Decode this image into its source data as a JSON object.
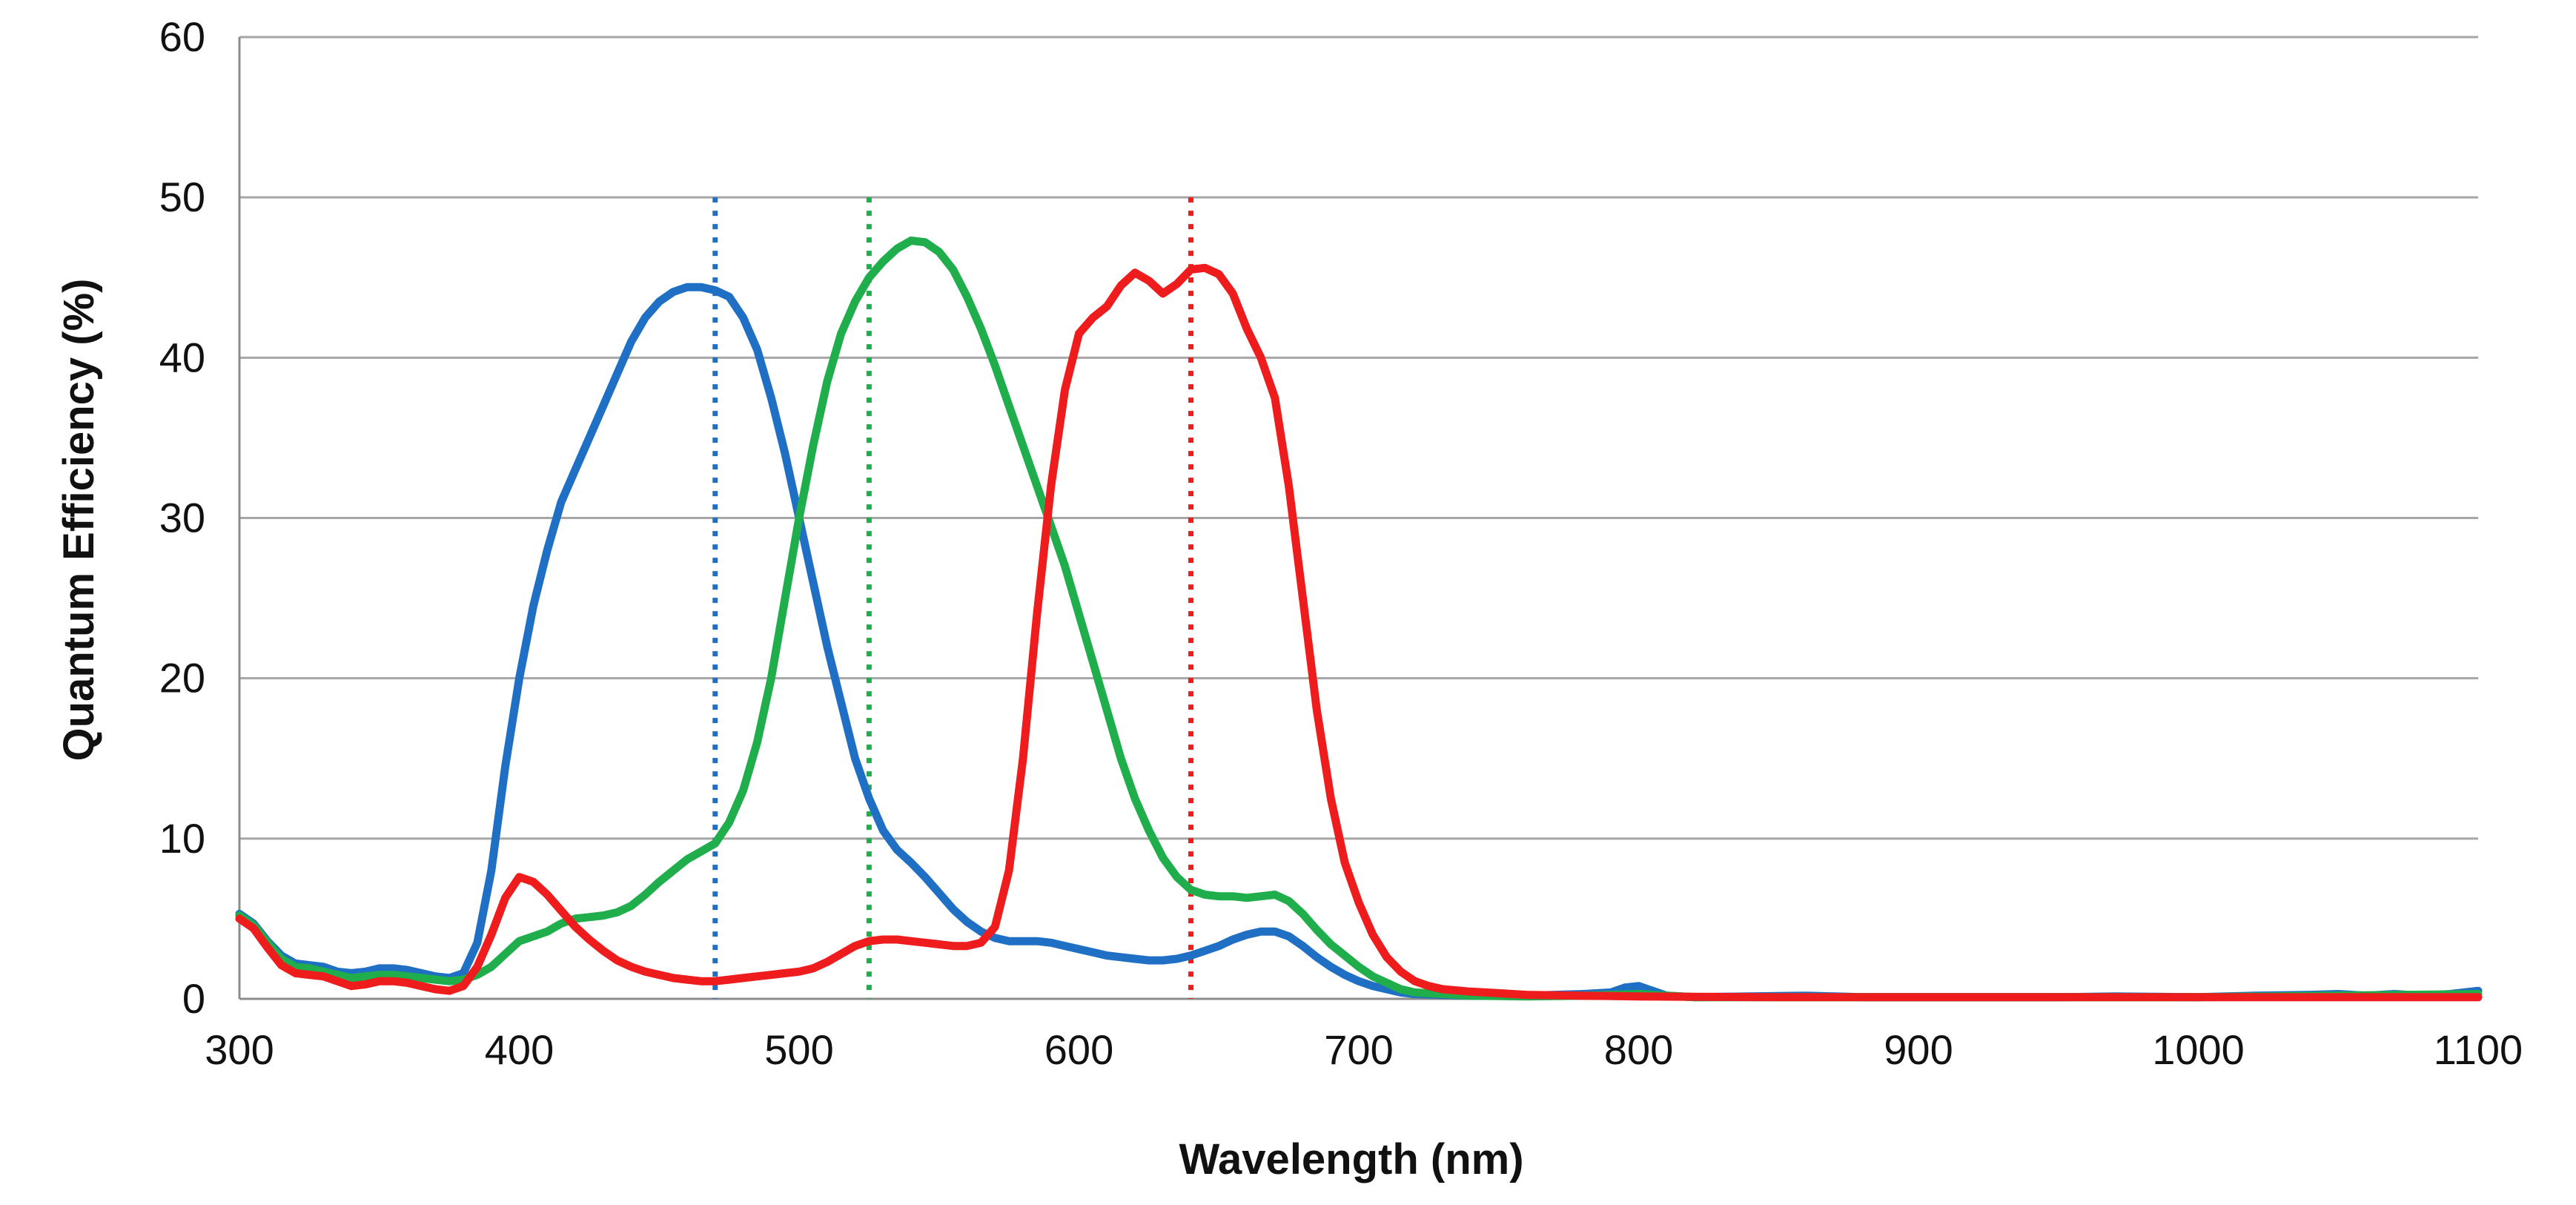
{
  "chart_data": {
    "type": "line",
    "title": "",
    "xlabel": "Wavelength (nm)",
    "ylabel": "Quantum Efficiency (%)",
    "xlim": [
      300,
      1100
    ],
    "ylim": [
      0,
      60
    ],
    "xticks": [
      300,
      400,
      500,
      600,
      700,
      800,
      900,
      1000,
      1100
    ],
    "yticks": [
      0,
      10,
      20,
      30,
      40,
      50,
      60
    ],
    "grid": true,
    "legend": "none",
    "series": [
      {
        "name": "blue",
        "color": "#1f6fc5",
        "points": [
          [
            300,
            5.3
          ],
          [
            305,
            4.7
          ],
          [
            310,
            3.6
          ],
          [
            315,
            2.7
          ],
          [
            320,
            2.2
          ],
          [
            325,
            2.1
          ],
          [
            330,
            2.0
          ],
          [
            335,
            1.7
          ],
          [
            340,
            1.6
          ],
          [
            345,
            1.7
          ],
          [
            350,
            1.9
          ],
          [
            355,
            1.9
          ],
          [
            360,
            1.8
          ],
          [
            365,
            1.6
          ],
          [
            370,
            1.4
          ],
          [
            375,
            1.3
          ],
          [
            380,
            1.6
          ],
          [
            385,
            3.5
          ],
          [
            390,
            8.0
          ],
          [
            395,
            14.5
          ],
          [
            400,
            20.0
          ],
          [
            405,
            24.5
          ],
          [
            410,
            28.0
          ],
          [
            415,
            31.0
          ],
          [
            420,
            33.0
          ],
          [
            425,
            35.0
          ],
          [
            430,
            37.0
          ],
          [
            435,
            39.0
          ],
          [
            440,
            41.0
          ],
          [
            445,
            42.5
          ],
          [
            450,
            43.5
          ],
          [
            455,
            44.1
          ],
          [
            460,
            44.4
          ],
          [
            465,
            44.4
          ],
          [
            470,
            44.2
          ],
          [
            475,
            43.8
          ],
          [
            480,
            42.5
          ],
          [
            485,
            40.5
          ],
          [
            490,
            37.5
          ],
          [
            495,
            34.0
          ],
          [
            500,
            30.0
          ],
          [
            505,
            26.0
          ],
          [
            510,
            22.0
          ],
          [
            515,
            18.5
          ],
          [
            520,
            15.0
          ],
          [
            525,
            12.5
          ],
          [
            530,
            10.5
          ],
          [
            535,
            9.3
          ],
          [
            540,
            8.5
          ],
          [
            545,
            7.6
          ],
          [
            550,
            6.6
          ],
          [
            555,
            5.6
          ],
          [
            560,
            4.8
          ],
          [
            565,
            4.2
          ],
          [
            570,
            3.8
          ],
          [
            575,
            3.6
          ],
          [
            580,
            3.6
          ],
          [
            585,
            3.6
          ],
          [
            590,
            3.5
          ],
          [
            595,
            3.3
          ],
          [
            600,
            3.1
          ],
          [
            605,
            2.9
          ],
          [
            610,
            2.7
          ],
          [
            615,
            2.6
          ],
          [
            620,
            2.5
          ],
          [
            625,
            2.4
          ],
          [
            630,
            2.4
          ],
          [
            635,
            2.5
          ],
          [
            640,
            2.7
          ],
          [
            645,
            3.0
          ],
          [
            650,
            3.3
          ],
          [
            655,
            3.7
          ],
          [
            660,
            4.0
          ],
          [
            665,
            4.2
          ],
          [
            670,
            4.2
          ],
          [
            675,
            3.9
          ],
          [
            680,
            3.3
          ],
          [
            685,
            2.6
          ],
          [
            690,
            2.0
          ],
          [
            695,
            1.5
          ],
          [
            700,
            1.1
          ],
          [
            705,
            0.8
          ],
          [
            710,
            0.6
          ],
          [
            715,
            0.4
          ],
          [
            720,
            0.3
          ],
          [
            730,
            0.25
          ],
          [
            740,
            0.2
          ],
          [
            750,
            0.2
          ],
          [
            760,
            0.2
          ],
          [
            770,
            0.25
          ],
          [
            780,
            0.3
          ],
          [
            790,
            0.4
          ],
          [
            795,
            0.7
          ],
          [
            800,
            0.8
          ],
          [
            805,
            0.5
          ],
          [
            810,
            0.2
          ],
          [
            820,
            0.1
          ],
          [
            840,
            0.15
          ],
          [
            860,
            0.2
          ],
          [
            880,
            0.1
          ],
          [
            900,
            0.1
          ],
          [
            950,
            0.1
          ],
          [
            970,
            0.15
          ],
          [
            1000,
            0.1
          ],
          [
            1020,
            0.2
          ],
          [
            1040,
            0.25
          ],
          [
            1050,
            0.3
          ],
          [
            1060,
            0.2
          ],
          [
            1070,
            0.3
          ],
          [
            1080,
            0.2
          ],
          [
            1090,
            0.3
          ],
          [
            1100,
            0.5
          ]
        ]
      },
      {
        "name": "green",
        "color": "#1fae4b",
        "points": [
          [
            300,
            5.2
          ],
          [
            305,
            4.6
          ],
          [
            310,
            3.5
          ],
          [
            315,
            2.5
          ],
          [
            320,
            2.0
          ],
          [
            325,
            1.9
          ],
          [
            330,
            1.7
          ],
          [
            335,
            1.5
          ],
          [
            340,
            1.3
          ],
          [
            345,
            1.4
          ],
          [
            350,
            1.5
          ],
          [
            355,
            1.5
          ],
          [
            360,
            1.4
          ],
          [
            365,
            1.3
          ],
          [
            370,
            1.2
          ],
          [
            375,
            1.1
          ],
          [
            380,
            1.2
          ],
          [
            385,
            1.5
          ],
          [
            390,
            2.0
          ],
          [
            395,
            2.8
          ],
          [
            400,
            3.6
          ],
          [
            405,
            3.9
          ],
          [
            410,
            4.2
          ],
          [
            415,
            4.7
          ],
          [
            420,
            5.0
          ],
          [
            425,
            5.1
          ],
          [
            430,
            5.2
          ],
          [
            435,
            5.4
          ],
          [
            440,
            5.8
          ],
          [
            445,
            6.5
          ],
          [
            450,
            7.3
          ],
          [
            455,
            8.0
          ],
          [
            460,
            8.7
          ],
          [
            465,
            9.2
          ],
          [
            470,
            9.7
          ],
          [
            475,
            11.0
          ],
          [
            480,
            13.0
          ],
          [
            485,
            16.0
          ],
          [
            490,
            20.0
          ],
          [
            495,
            25.0
          ],
          [
            500,
            30.0
          ],
          [
            505,
            34.5
          ],
          [
            510,
            38.5
          ],
          [
            515,
            41.5
          ],
          [
            520,
            43.5
          ],
          [
            525,
            45.0
          ],
          [
            530,
            46.0
          ],
          [
            535,
            46.8
          ],
          [
            540,
            47.3
          ],
          [
            545,
            47.2
          ],
          [
            550,
            46.6
          ],
          [
            555,
            45.5
          ],
          [
            560,
            43.8
          ],
          [
            565,
            41.8
          ],
          [
            570,
            39.5
          ],
          [
            575,
            37.0
          ],
          [
            580,
            34.5
          ],
          [
            585,
            32.0
          ],
          [
            590,
            29.5
          ],
          [
            595,
            27.0
          ],
          [
            600,
            24.0
          ],
          [
            605,
            21.0
          ],
          [
            610,
            18.0
          ],
          [
            615,
            15.0
          ],
          [
            620,
            12.5
          ],
          [
            625,
            10.5
          ],
          [
            630,
            8.8
          ],
          [
            635,
            7.6
          ],
          [
            640,
            6.8
          ],
          [
            645,
            6.5
          ],
          [
            650,
            6.4
          ],
          [
            655,
            6.4
          ],
          [
            660,
            6.3
          ],
          [
            665,
            6.4
          ],
          [
            670,
            6.5
          ],
          [
            675,
            6.1
          ],
          [
            680,
            5.3
          ],
          [
            685,
            4.3
          ],
          [
            690,
            3.4
          ],
          [
            695,
            2.7
          ],
          [
            700,
            2.0
          ],
          [
            705,
            1.4
          ],
          [
            710,
            1.0
          ],
          [
            715,
            0.6
          ],
          [
            720,
            0.4
          ],
          [
            730,
            0.3
          ],
          [
            740,
            0.2
          ],
          [
            760,
            0.15
          ],
          [
            780,
            0.2
          ],
          [
            800,
            0.3
          ],
          [
            820,
            0.1
          ],
          [
            900,
            0.1
          ],
          [
            1000,
            0.1
          ],
          [
            1100,
            0.3
          ]
        ]
      },
      {
        "name": "red",
        "color": "#ee1c1c",
        "points": [
          [
            300,
            5.0
          ],
          [
            305,
            4.4
          ],
          [
            310,
            3.2
          ],
          [
            315,
            2.1
          ],
          [
            320,
            1.6
          ],
          [
            325,
            1.5
          ],
          [
            330,
            1.4
          ],
          [
            335,
            1.1
          ],
          [
            340,
            0.8
          ],
          [
            345,
            0.9
          ],
          [
            350,
            1.1
          ],
          [
            355,
            1.1
          ],
          [
            360,
            1.0
          ],
          [
            365,
            0.8
          ],
          [
            370,
            0.6
          ],
          [
            375,
            0.5
          ],
          [
            380,
            0.8
          ],
          [
            385,
            2.0
          ],
          [
            390,
            4.0
          ],
          [
            395,
            6.3
          ],
          [
            400,
            7.6
          ],
          [
            405,
            7.3
          ],
          [
            410,
            6.5
          ],
          [
            415,
            5.5
          ],
          [
            420,
            4.5
          ],
          [
            425,
            3.7
          ],
          [
            430,
            3.0
          ],
          [
            435,
            2.4
          ],
          [
            440,
            2.0
          ],
          [
            445,
            1.7
          ],
          [
            450,
            1.5
          ],
          [
            455,
            1.3
          ],
          [
            460,
            1.2
          ],
          [
            465,
            1.1
          ],
          [
            470,
            1.1
          ],
          [
            475,
            1.2
          ],
          [
            480,
            1.3
          ],
          [
            485,
            1.4
          ],
          [
            490,
            1.5
          ],
          [
            495,
            1.6
          ],
          [
            500,
            1.7
          ],
          [
            505,
            1.9
          ],
          [
            510,
            2.3
          ],
          [
            515,
            2.8
          ],
          [
            520,
            3.3
          ],
          [
            525,
            3.6
          ],
          [
            530,
            3.7
          ],
          [
            535,
            3.7
          ],
          [
            540,
            3.6
          ],
          [
            545,
            3.5
          ],
          [
            550,
            3.4
          ],
          [
            555,
            3.3
          ],
          [
            560,
            3.3
          ],
          [
            565,
            3.5
          ],
          [
            570,
            4.5
          ],
          [
            575,
            8.0
          ],
          [
            580,
            15.0
          ],
          [
            585,
            24.0
          ],
          [
            590,
            32.0
          ],
          [
            595,
            38.0
          ],
          [
            600,
            41.5
          ],
          [
            605,
            42.5
          ],
          [
            610,
            43.2
          ],
          [
            615,
            44.5
          ],
          [
            620,
            45.3
          ],
          [
            625,
            44.8
          ],
          [
            630,
            44.0
          ],
          [
            635,
            44.6
          ],
          [
            640,
            45.5
          ],
          [
            645,
            45.6
          ],
          [
            650,
            45.2
          ],
          [
            655,
            44.0
          ],
          [
            660,
            41.8
          ],
          [
            665,
            40.0
          ],
          [
            670,
            37.5
          ],
          [
            675,
            32.0
          ],
          [
            680,
            25.0
          ],
          [
            685,
            18.0
          ],
          [
            690,
            12.5
          ],
          [
            695,
            8.5
          ],
          [
            700,
            6.0
          ],
          [
            705,
            4.0
          ],
          [
            710,
            2.6
          ],
          [
            715,
            1.7
          ],
          [
            720,
            1.1
          ],
          [
            725,
            0.8
          ],
          [
            730,
            0.6
          ],
          [
            740,
            0.45
          ],
          [
            750,
            0.35
          ],
          [
            760,
            0.25
          ],
          [
            780,
            0.2
          ],
          [
            800,
            0.15
          ],
          [
            850,
            0.1
          ],
          [
            900,
            0.1
          ],
          [
            1000,
            0.1
          ],
          [
            1100,
            0.1
          ]
        ]
      }
    ],
    "reference_lines": [
      {
        "name": "blue",
        "x": 470,
        "ymax": 50,
        "color": "#1f6fc5",
        "style": "dotted"
      },
      {
        "name": "green",
        "x": 525,
        "ymax": 50,
        "color": "#1fae4b",
        "style": "dotted"
      },
      {
        "name": "red",
        "x": 640,
        "ymax": 50,
        "color": "#ee1c1c",
        "style": "dotted"
      }
    ]
  }
}
